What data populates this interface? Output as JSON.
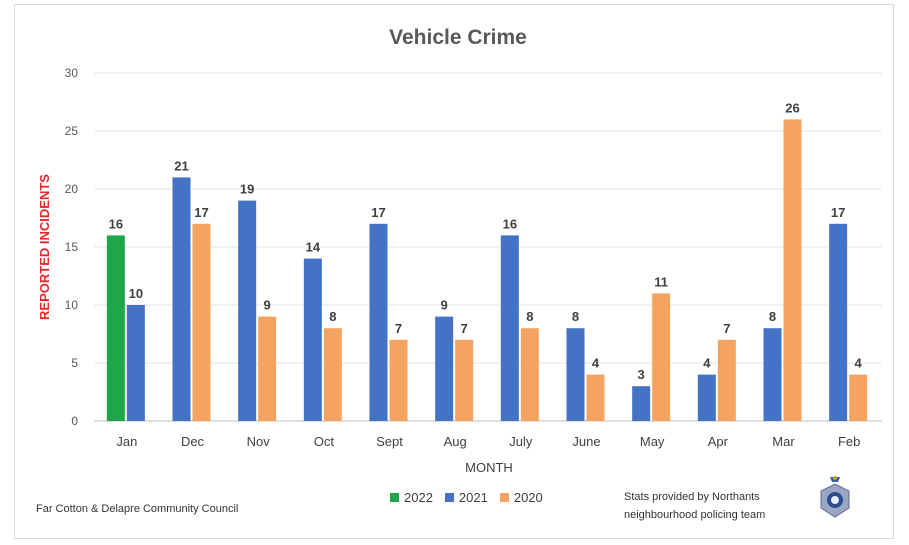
{
  "chart_data": {
    "type": "bar",
    "title": "Vehicle Crime",
    "xlabel": "MONTH",
    "ylabel": "REPORTED INCIDENTS",
    "ylim": [
      0,
      30
    ],
    "yticks": [
      0,
      5,
      10,
      15,
      20,
      25,
      30
    ],
    "grid": true,
    "legend_position": "bottom",
    "categories": [
      "Jan",
      "Dec",
      "Nov",
      "Oct",
      "Sept",
      "Aug",
      "July",
      "June",
      "May",
      "Apr",
      "Mar",
      "Feb"
    ],
    "series": [
      {
        "name": "2022",
        "color": "#1fa64a",
        "values": [
          16,
          null,
          null,
          null,
          null,
          null,
          null,
          null,
          null,
          null,
          null,
          null
        ]
      },
      {
        "name": "2021",
        "color": "#4472c4",
        "values": [
          10,
          21,
          19,
          14,
          17,
          9,
          16,
          8,
          3,
          4,
          8,
          17
        ]
      },
      {
        "name": "2020",
        "color": "#f4a460",
        "values": [
          null,
          17,
          9,
          8,
          7,
          7,
          8,
          4,
          11,
          7,
          26,
          4
        ]
      }
    ],
    "ylabel_color": "#e8262b"
  },
  "footer": {
    "left_text": "Far Cotton & Delapre Community Council",
    "right_line1": "Stats provided by Northants",
    "right_line2": "neighbourhood policing team"
  },
  "badge_icon": "police-crest-icon"
}
